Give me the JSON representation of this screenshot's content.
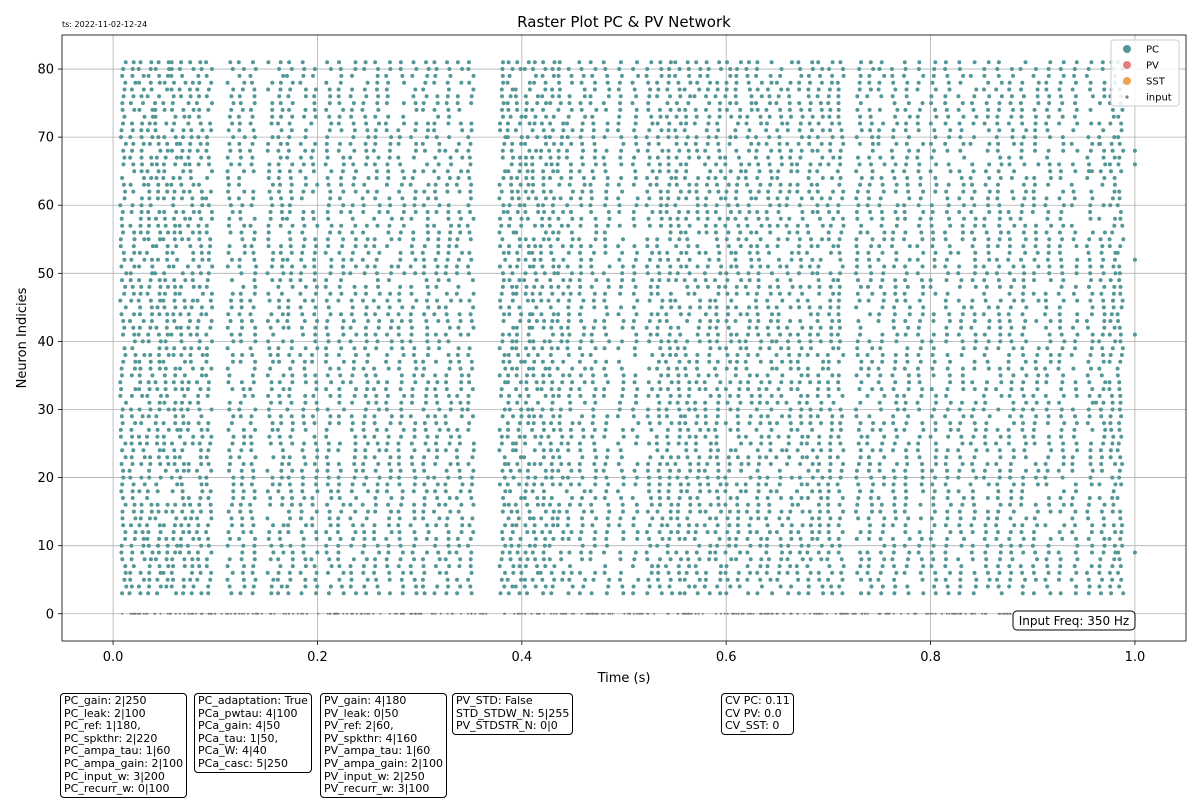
{
  "timestamp": "ts: 2022-11-02-12-24",
  "chart_data": {
    "type": "scatter",
    "title": "Raster Plot PC & PV Network",
    "xlabel": "Time (s)",
    "ylabel": "Neuron Indicies",
    "xlim": [
      -0.05,
      1.05
    ],
    "ylim": [
      -4,
      85
    ],
    "xticks": [
      0.0,
      0.2,
      0.4,
      0.6,
      0.8,
      1.0
    ],
    "xtick_labels": [
      "0.0",
      "0.2",
      "0.4",
      "0.6",
      "0.8",
      "1.0"
    ],
    "yticks": [
      0,
      10,
      20,
      30,
      40,
      50,
      60,
      70,
      80
    ],
    "ytick_labels": [
      "0",
      "10",
      "20",
      "30",
      "40",
      "50",
      "60",
      "70",
      "80"
    ],
    "grid": true,
    "legend_position": "top-right",
    "legend": [
      {
        "name": "PC",
        "color": "#559797",
        "marker": "large-dot"
      },
      {
        "name": "PV",
        "color": "#e57f7f",
        "marker": "large-dot"
      },
      {
        "name": "SST",
        "color": "#f0a050",
        "marker": "large-dot"
      },
      {
        "name": "input",
        "color": "#7b7b7b",
        "marker": "small-dot"
      }
    ],
    "pc_neurons": {
      "first": 3,
      "last": 81
    },
    "pc_spike_times": [
      0.01,
      0.019,
      0.028,
      0.036,
      0.044,
      0.052,
      0.06,
      0.068,
      0.076,
      0.085,
      0.094,
      0.115,
      0.126,
      0.137,
      0.154,
      0.164,
      0.173,
      0.186,
      0.197,
      0.211,
      0.223,
      0.235,
      0.247,
      0.258,
      0.27,
      0.282,
      0.294,
      0.306,
      0.317,
      0.328,
      0.339,
      0.35,
      0.381,
      0.389,
      0.397,
      0.405,
      0.413,
      0.421,
      0.429,
      0.438,
      0.447,
      0.459,
      0.47,
      0.483,
      0.497,
      0.511,
      0.525,
      0.535,
      0.544,
      0.553,
      0.562,
      0.572,
      0.582,
      0.592,
      0.602,
      0.612,
      0.622,
      0.632,
      0.642,
      0.652,
      0.662,
      0.672,
      0.682,
      0.692,
      0.702,
      0.712,
      0.73,
      0.741,
      0.752,
      0.765,
      0.777,
      0.79,
      0.803,
      0.817,
      0.83,
      0.842,
      0.855,
      0.867,
      0.879,
      0.891,
      0.903,
      0.915,
      0.928,
      0.941,
      0.956,
      0.968,
      0.978,
      0.986
    ],
    "pc_sparse_extra": [
      {
        "t": 0.955,
        "neuron": 65
      },
      {
        "t": 0.965,
        "neuron": 69
      },
      {
        "t": 0.962,
        "neuron": 31
      },
      {
        "t": 1.0,
        "neuron": 52
      },
      {
        "t": 1.0,
        "neuron": 41
      },
      {
        "t": 1.0,
        "neuron": 66
      },
      {
        "t": 1.0,
        "neuron": 68
      },
      {
        "t": 1.0,
        "neuron": 9
      }
    ],
    "input_neuron": 0,
    "input_spike_count": 320,
    "input_gap": [
      0.37,
      0.38
    ],
    "input_spike_density_note": "dense along neuron 0 from 0.005 s to 0.88 s"
  },
  "annotation": {
    "input_freq": "Input Freq: 350 Hz"
  },
  "param_boxes": {
    "pc": [
      "PC_gain: 2|250",
      "PC_leak: 2|100",
      "PC_ref: 1|180,",
      "PC_spkthr: 2|220",
      "PC_ampa_tau: 1|60",
      "PC_ampa_gain: 2|100",
      "PC_input_w: 3|200",
      "PC_recurr_w: 0|100"
    ],
    "pca": [
      "PC_adaptation: True",
      "PCa_pwtau: 4|100",
      "PCa_gain: 4|50",
      "PCa_tau: 1|50,",
      "PCa_W: 4|40",
      "PCa_casc: 5|250"
    ],
    "pv": [
      "PV_gain: 4|180",
      "PV_leak: 0|50",
      "PV_ref: 2|60,",
      "PV_spkthr: 4|160",
      "PV_ampa_tau: 1|60",
      "PV_ampa_gain: 2|100",
      "PV_input_w: 2|250",
      "PV_recurr_w: 3|100"
    ],
    "std": [
      "PV_STD: False",
      "STD_STDW_N: 5|255",
      "PV_STDSTR_N: 0|0"
    ],
    "cv": [
      "CV PC: 0.11",
      "CV PV: 0.0",
      "CV_SST: 0"
    ]
  }
}
